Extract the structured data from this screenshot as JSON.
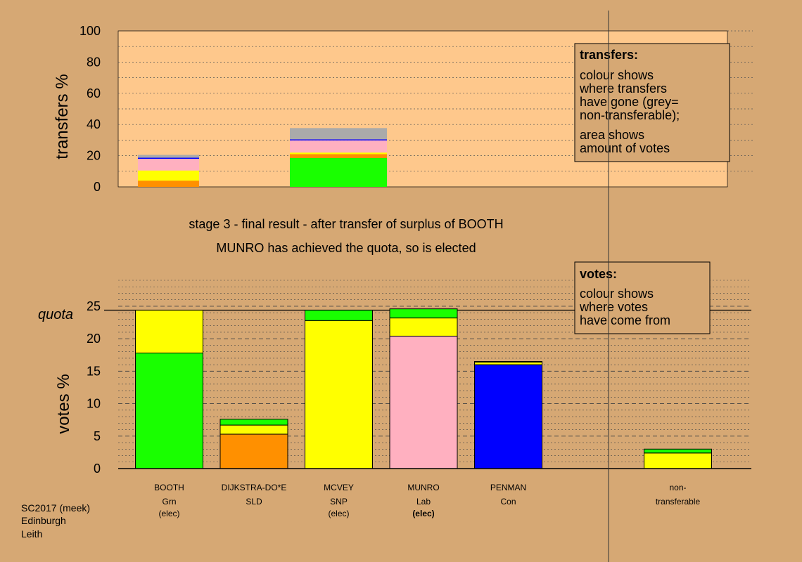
{
  "colors": {
    "background": "#d6a874",
    "panel": "#fec88c",
    "Grn": "#19ff00",
    "SLD": "#ff9000",
    "SNP": "#ffff00",
    "Lab": "#ffb0c0",
    "Con": "#0000ff",
    "nontransferable": "#aaaaaa"
  },
  "stage": {
    "line1": "stage 3 - final result - after transfer of surplus of BOOTH",
    "line2": "MUNRO has achieved the quota, so is elected"
  },
  "transfers_legend": {
    "title": "transfers:",
    "lines": [
      "colour shows",
      "where transfers",
      "have gone (grey=",
      "non-transferable);"
    ],
    "lines2": [
      "area shows",
      "amount of votes"
    ]
  },
  "votes_legend": {
    "title": "votes:",
    "lines": [
      "colour shows",
      "where votes",
      "have come from"
    ]
  },
  "footer": {
    "line1": "SC2017 (meek)",
    "line2": "Edinburgh",
    "line3": "Leith"
  },
  "quota_label": "quota",
  "chart_data": [
    {
      "type": "bar",
      "name": "transfers",
      "ylabel": "transfers %",
      "ylim": [
        0,
        100
      ],
      "yticks": [
        0,
        20,
        40,
        60,
        80,
        100
      ],
      "grid": true,
      "bars": [
        {
          "slot": 0,
          "segments": [
            {
              "party": "SLD",
              "value": 4.0
            },
            {
              "party": "SNP",
              "value": 6.5
            },
            {
              "party": "Lab",
              "value": 7.5
            },
            {
              "party": "Con",
              "value": 0.7
            },
            {
              "party": "nontransferable",
              "value": 1.8
            }
          ]
        },
        {
          "slot": 1,
          "segments": [
            {
              "party": "Grn",
              "value": 18.5
            },
            {
              "party": "SLD",
              "value": 2.5
            },
            {
              "party": "SNP",
              "value": 1.0
            },
            {
              "party": "Lab",
              "value": 7.8
            },
            {
              "party": "Con",
              "value": 0.7
            },
            {
              "party": "nontransferable",
              "value": 7.2
            }
          ]
        }
      ]
    },
    {
      "type": "bar",
      "name": "votes",
      "ylabel": "votes %",
      "ylim": [
        0,
        29
      ],
      "yticks": [
        0,
        5,
        10,
        15,
        20,
        25
      ],
      "quota": 24.4,
      "grid": true,
      "candidates": [
        {
          "name": "BOOTH",
          "party": "Grn",
          "status": "(elec)",
          "bold": false,
          "segments": [
            {
              "party": "Grn",
              "value": 17.8
            },
            {
              "party": "SNP",
              "value": 6.6
            }
          ]
        },
        {
          "name": "DIJKSTRA-DO*E",
          "party": "SLD",
          "status": "",
          "bold": false,
          "segments": [
            {
              "party": "SLD",
              "value": 5.3
            },
            {
              "party": "SNP",
              "value": 1.4
            },
            {
              "party": "Grn",
              "value": 0.9
            }
          ]
        },
        {
          "name": "MCVEY",
          "party": "SNP",
          "status": "(elec)",
          "bold": false,
          "segments": [
            {
              "party": "SNP",
              "value": 22.8
            },
            {
              "party": "Grn",
              "value": 1.6
            }
          ]
        },
        {
          "name": "MUNRO",
          "party": "Lab",
          "status": "(elec)",
          "bold": true,
          "segments": [
            {
              "party": "Lab",
              "value": 20.4
            },
            {
              "party": "SNP",
              "value": 2.8
            },
            {
              "party": "Grn",
              "value": 1.4
            }
          ]
        },
        {
          "name": "PENMAN",
          "party": "Con",
          "status": "",
          "bold": false,
          "segments": [
            {
              "party": "Con",
              "value": 16.0
            },
            {
              "party": "SNP",
              "value": 0.4
            },
            {
              "party": "Grn",
              "value": 0.1
            }
          ]
        },
        {
          "name": "non-",
          "party": "transferable",
          "status": "",
          "bold": false,
          "slot": 6,
          "segments": [
            {
              "party": "SNP",
              "value": 2.4
            },
            {
              "party": "Grn",
              "value": 0.6
            }
          ]
        }
      ]
    }
  ]
}
